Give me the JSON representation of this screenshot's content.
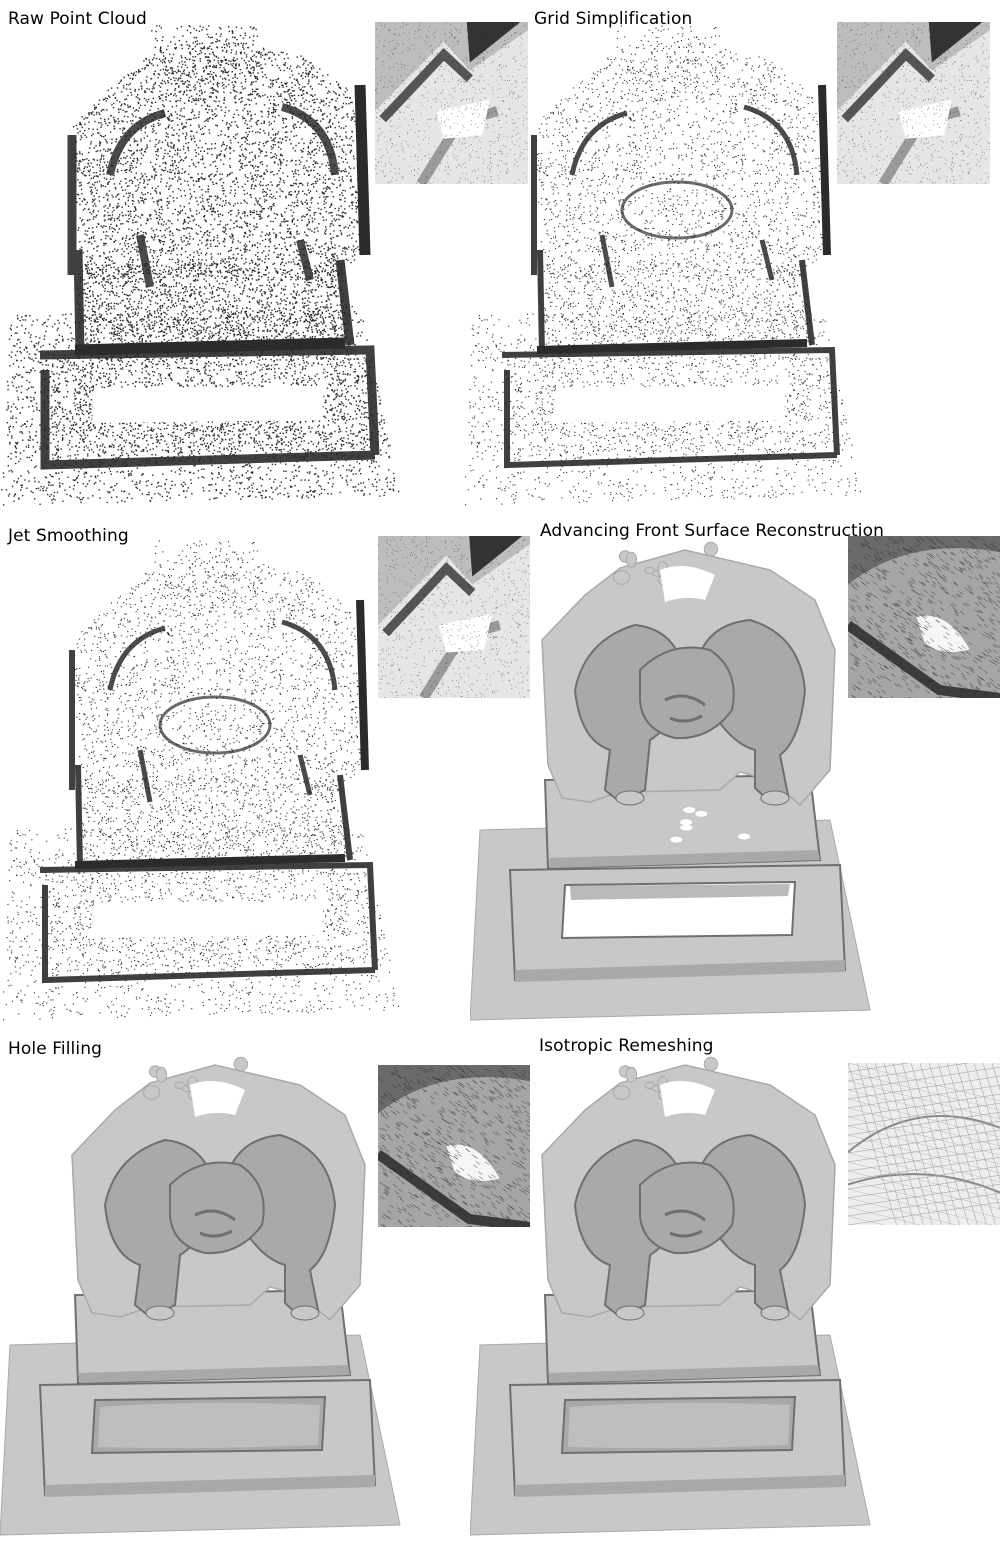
{
  "panels": [
    {
      "title": "Raw Point Cloud",
      "mode": "points",
      "density": "high",
      "inset": "points"
    },
    {
      "title": "Grid Simplification",
      "mode": "points",
      "density": "low",
      "inset": "points"
    },
    {
      "title": "Jet Smoothing",
      "mode": "points",
      "density": "low",
      "inset": "points"
    },
    {
      "title": "Advancing Front Surface Reconstruction",
      "mode": "surface",
      "holes": true,
      "inset": "mesh-dark"
    },
    {
      "title": "Hole Filling",
      "mode": "surface",
      "holes": false,
      "inset": "mesh-dark"
    },
    {
      "title": "Isotropic Remeshing",
      "mode": "surface",
      "holes": false,
      "inset": "mesh-light"
    }
  ],
  "colors": {
    "point": "#2b2b2b",
    "surface_light": "#c8c8c8",
    "surface_mid": "#a9a9a9",
    "surface_dark": "#6f6f6f",
    "background": "#ffffff"
  }
}
